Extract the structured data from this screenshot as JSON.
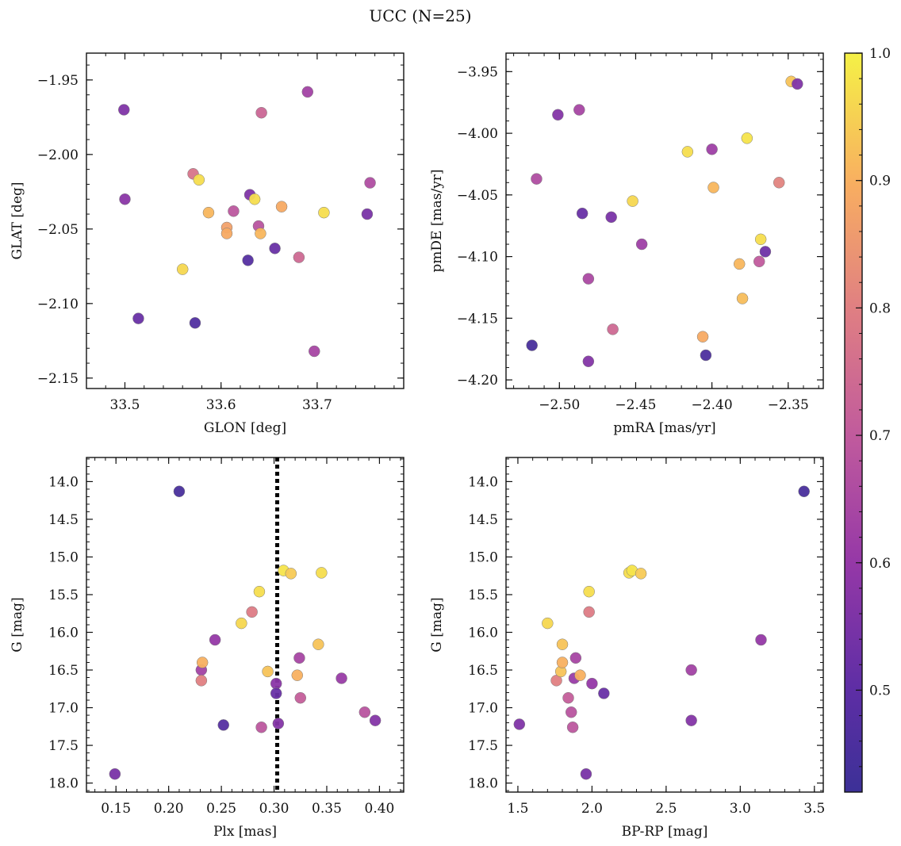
{
  "figure": {
    "title": "UCC (N=25)"
  },
  "colorbar": {
    "cmap": "plasma",
    "range": [
      0.42,
      1.0
    ],
    "ticks": [
      0.5,
      0.6,
      0.7,
      0.8,
      0.9,
      1.0
    ],
    "tick_labels": [
      "0.5",
      "0.6",
      "0.7",
      "0.8",
      "0.9",
      "1.0"
    ]
  },
  "chart_data": [
    {
      "type": "scatter",
      "title": "",
      "xlabel": "GLON [deg]",
      "ylabel": "GLAT [deg]",
      "xlim": [
        33.46,
        33.79
      ],
      "ylim": [
        -2.157,
        -1.932
      ],
      "y_inverted": false,
      "xticks": [
        33.5,
        33.6,
        33.7
      ],
      "xtick_labels": [
        "33.5",
        "33.6",
        "33.7"
      ],
      "yticks": [
        -1.95,
        -2.0,
        -2.05,
        -2.1,
        -2.15
      ],
      "ytick_labels": [
        "−1.95",
        "−2.00",
        "−2.05",
        "−2.10",
        "−2.15"
      ],
      "points": [
        {
          "x": 33.499,
          "y": -1.97,
          "c": 0.56
        },
        {
          "x": 33.5,
          "y": -2.03,
          "c": 0.58
        },
        {
          "x": 33.514,
          "y": -2.11,
          "c": 0.52
        },
        {
          "x": 33.571,
          "y": -2.013,
          "c": 0.77
        },
        {
          "x": 33.577,
          "y": -2.017,
          "c": 0.97
        },
        {
          "x": 33.573,
          "y": -2.113,
          "c": 0.47
        },
        {
          "x": 33.56,
          "y": -2.077,
          "c": 0.96
        },
        {
          "x": 33.587,
          "y": -2.039,
          "c": 0.91
        },
        {
          "x": 33.606,
          "y": -2.049,
          "c": 0.87
        },
        {
          "x": 33.606,
          "y": -2.053,
          "c": 0.89
        },
        {
          "x": 33.613,
          "y": -2.038,
          "c": 0.69
        },
        {
          "x": 33.63,
          "y": -2.027,
          "c": 0.56
        },
        {
          "x": 33.635,
          "y": -2.03,
          "c": 0.97
        },
        {
          "x": 33.628,
          "y": -2.071,
          "c": 0.48
        },
        {
          "x": 33.639,
          "y": -2.048,
          "c": 0.68
        },
        {
          "x": 33.641,
          "y": -2.053,
          "c": 0.91
        },
        {
          "x": 33.642,
          "y": -1.972,
          "c": 0.73
        },
        {
          "x": 33.656,
          "y": -2.063,
          "c": 0.52
        },
        {
          "x": 33.663,
          "y": -2.035,
          "c": 0.89
        },
        {
          "x": 33.681,
          "y": -2.069,
          "c": 0.74
        },
        {
          "x": 33.69,
          "y": -1.958,
          "c": 0.63
        },
        {
          "x": 33.697,
          "y": -2.132,
          "c": 0.64
        },
        {
          "x": 33.707,
          "y": -2.039,
          "c": 0.97
        },
        {
          "x": 33.752,
          "y": -2.04,
          "c": 0.55
        },
        {
          "x": 33.755,
          "y": -2.019,
          "c": 0.66
        }
      ]
    },
    {
      "type": "scatter",
      "title": "",
      "xlabel": "pmRA [mas/yr]",
      "ylabel": "pmDE [mas/yr]",
      "xlim": [
        -2.535,
        -2.327
      ],
      "ylim": [
        -4.207,
        -3.935
      ],
      "y_inverted": false,
      "xticks": [
        -2.5,
        -2.45,
        -2.4,
        -2.35
      ],
      "xtick_labels": [
        "−2.50",
        "−2.45",
        "−2.40",
        "−2.35"
      ],
      "yticks": [
        -3.95,
        -4.0,
        -4.05,
        -4.1,
        -4.15,
        -4.2
      ],
      "ytick_labels": [
        "−3.95",
        "−4.00",
        "−4.05",
        "−4.10",
        "−4.15",
        "−4.20"
      ],
      "points": [
        {
          "x": -2.518,
          "y": -4.172,
          "c": 0.45
        },
        {
          "x": -2.515,
          "y": -4.037,
          "c": 0.66
        },
        {
          "x": -2.501,
          "y": -3.985,
          "c": 0.57
        },
        {
          "x": -2.487,
          "y": -3.981,
          "c": 0.64
        },
        {
          "x": -2.485,
          "y": -4.065,
          "c": 0.52
        },
        {
          "x": -2.481,
          "y": -4.118,
          "c": 0.65
        },
        {
          "x": -2.481,
          "y": -4.185,
          "c": 0.57
        },
        {
          "x": -2.466,
          "y": -4.068,
          "c": 0.55
        },
        {
          "x": -2.465,
          "y": -4.159,
          "c": 0.74
        },
        {
          "x": -2.452,
          "y": -4.055,
          "c": 0.96
        },
        {
          "x": -2.446,
          "y": -4.09,
          "c": 0.62
        },
        {
          "x": -2.416,
          "y": -4.015,
          "c": 0.97
        },
        {
          "x": -2.406,
          "y": -4.165,
          "c": 0.89
        },
        {
          "x": -2.404,
          "y": -4.18,
          "c": 0.46
        },
        {
          "x": -2.4,
          "y": -4.013,
          "c": 0.62
        },
        {
          "x": -2.399,
          "y": -4.044,
          "c": 0.91
        },
        {
          "x": -2.382,
          "y": -4.106,
          "c": 0.91
        },
        {
          "x": -2.38,
          "y": -4.134,
          "c": 0.92
        },
        {
          "x": -2.377,
          "y": -4.004,
          "c": 0.98
        },
        {
          "x": -2.369,
          "y": -4.104,
          "c": 0.7
        },
        {
          "x": -2.368,
          "y": -4.086,
          "c": 0.97
        },
        {
          "x": -2.365,
          "y": -4.096,
          "c": 0.53
        },
        {
          "x": -2.356,
          "y": -4.04,
          "c": 0.81
        },
        {
          "x": -2.348,
          "y": -3.958,
          "c": 0.93
        },
        {
          "x": -2.344,
          "y": -3.96,
          "c": 0.56
        }
      ]
    },
    {
      "type": "scatter",
      "title": "",
      "xlabel": "Plx [mas]",
      "ylabel": "G [mag]",
      "xlim": [
        0.122,
        0.423
      ],
      "ylim": [
        18.12,
        13.68
      ],
      "y_inverted": true,
      "xticks": [
        0.15,
        0.2,
        0.25,
        0.3,
        0.35,
        0.4
      ],
      "xtick_labels": [
        "0.15",
        "0.20",
        "0.25",
        "0.30",
        "0.35",
        "0.40"
      ],
      "yticks": [
        14.0,
        14.5,
        15.0,
        15.5,
        16.0,
        16.5,
        17.0,
        17.5,
        18.0
      ],
      "ytick_labels": [
        "14.0",
        "14.5",
        "15.0",
        "15.5",
        "16.0",
        "16.5",
        "17.0",
        "17.5",
        "18.0"
      ],
      "vline": {
        "x": 0.303,
        "style": "dotted",
        "color": "#000000"
      },
      "points": [
        {
          "x": 0.149,
          "y": 17.88,
          "c": 0.55
        },
        {
          "x": 0.21,
          "y": 14.13,
          "c": 0.45
        },
        {
          "x": 0.231,
          "y": 16.5,
          "c": 0.63
        },
        {
          "x": 0.231,
          "y": 16.64,
          "c": 0.8
        },
        {
          "x": 0.232,
          "y": 16.4,
          "c": 0.9
        },
        {
          "x": 0.244,
          "y": 16.1,
          "c": 0.6
        },
        {
          "x": 0.252,
          "y": 17.23,
          "c": 0.48
        },
        {
          "x": 0.269,
          "y": 15.88,
          "c": 0.96
        },
        {
          "x": 0.279,
          "y": 15.73,
          "c": 0.79
        },
        {
          "x": 0.286,
          "y": 15.46,
          "c": 0.97
        },
        {
          "x": 0.288,
          "y": 17.26,
          "c": 0.69
        },
        {
          "x": 0.294,
          "y": 16.52,
          "c": 0.93
        },
        {
          "x": 0.302,
          "y": 16.68,
          "c": 0.58
        },
        {
          "x": 0.302,
          "y": 16.81,
          "c": 0.52
        },
        {
          "x": 0.304,
          "y": 17.21,
          "c": 0.57
        },
        {
          "x": 0.309,
          "y": 15.18,
          "c": 0.98
        },
        {
          "x": 0.316,
          "y": 15.22,
          "c": 0.94
        },
        {
          "x": 0.322,
          "y": 16.57,
          "c": 0.9
        },
        {
          "x": 0.324,
          "y": 16.34,
          "c": 0.64
        },
        {
          "x": 0.325,
          "y": 16.87,
          "c": 0.71
        },
        {
          "x": 0.342,
          "y": 16.16,
          "c": 0.93
        },
        {
          "x": 0.345,
          "y": 15.21,
          "c": 0.97
        },
        {
          "x": 0.364,
          "y": 16.61,
          "c": 0.61
        },
        {
          "x": 0.386,
          "y": 17.06,
          "c": 0.68
        },
        {
          "x": 0.396,
          "y": 17.17,
          "c": 0.57
        }
      ]
    },
    {
      "type": "scatter",
      "title": "",
      "xlabel": "BP-RP [mag]",
      "ylabel": "G [mag]",
      "xlim": [
        1.42,
        3.56
      ],
      "ylim": [
        18.12,
        13.68
      ],
      "y_inverted": true,
      "xticks": [
        1.5,
        2.0,
        2.5,
        3.0,
        3.5
      ],
      "xtick_labels": [
        "1.5",
        "2.0",
        "2.5",
        "3.0",
        "3.5"
      ],
      "yticks": [
        14.0,
        14.5,
        15.0,
        15.5,
        16.0,
        16.5,
        17.0,
        17.5,
        18.0
      ],
      "ytick_labels": [
        "14.0",
        "14.5",
        "15.0",
        "15.5",
        "16.0",
        "16.5",
        "17.0",
        "17.5",
        "18.0"
      ],
      "points": [
        {
          "x": 1.51,
          "y": 17.22,
          "c": 0.56
        },
        {
          "x": 1.7,
          "y": 15.88,
          "c": 0.96
        },
        {
          "x": 1.76,
          "y": 16.64,
          "c": 0.8
        },
        {
          "x": 1.79,
          "y": 16.52,
          "c": 0.93
        },
        {
          "x": 1.8,
          "y": 16.4,
          "c": 0.9
        },
        {
          "x": 1.8,
          "y": 16.16,
          "c": 0.93
        },
        {
          "x": 1.84,
          "y": 16.87,
          "c": 0.71
        },
        {
          "x": 1.86,
          "y": 17.06,
          "c": 0.68
        },
        {
          "x": 1.87,
          "y": 17.26,
          "c": 0.69
        },
        {
          "x": 1.88,
          "y": 16.61,
          "c": 0.61
        },
        {
          "x": 1.89,
          "y": 16.34,
          "c": 0.64
        },
        {
          "x": 1.92,
          "y": 16.57,
          "c": 0.9
        },
        {
          "x": 1.96,
          "y": 17.88,
          "c": 0.55
        },
        {
          "x": 1.98,
          "y": 15.46,
          "c": 0.97
        },
        {
          "x": 1.98,
          "y": 15.73,
          "c": 0.79
        },
        {
          "x": 2.0,
          "y": 16.68,
          "c": 0.6
        },
        {
          "x": 2.08,
          "y": 16.81,
          "c": 0.52
        },
        {
          "x": 2.25,
          "y": 15.21,
          "c": 0.97
        },
        {
          "x": 2.27,
          "y": 15.18,
          "c": 0.98
        },
        {
          "x": 2.33,
          "y": 15.22,
          "c": 0.94
        },
        {
          "x": 2.67,
          "y": 16.5,
          "c": 0.63
        },
        {
          "x": 2.67,
          "y": 17.17,
          "c": 0.57
        },
        {
          "x": 3.14,
          "y": 16.1,
          "c": 0.6
        },
        {
          "x": 3.43,
          "y": 14.13,
          "c": 0.45
        }
      ]
    }
  ]
}
